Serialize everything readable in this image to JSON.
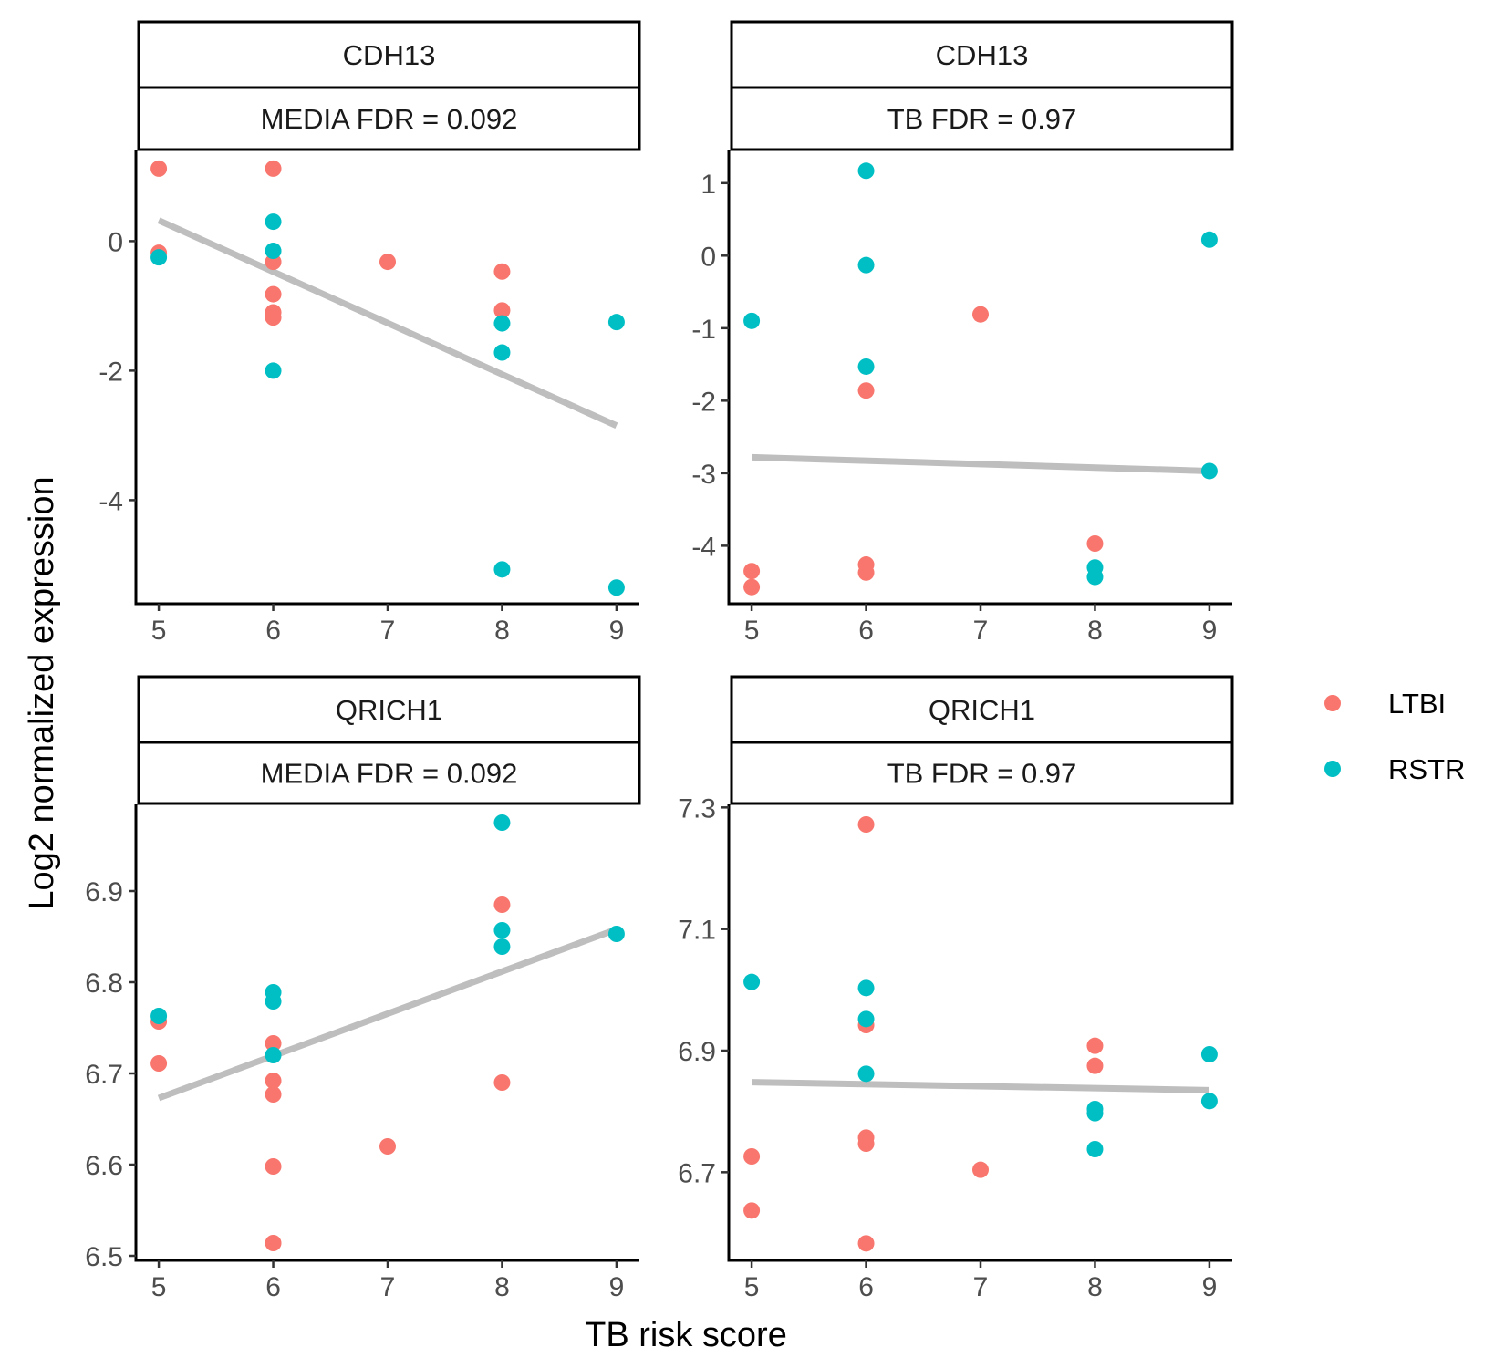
{
  "ylabel": "Log2 normalized expression",
  "xlabel": "TB risk score",
  "legend": {
    "position": "right",
    "entries": [
      {
        "label": "LTBI",
        "color": "#F8766D"
      },
      {
        "label": "RSTR",
        "color": "#00BFC4"
      }
    ]
  },
  "chart_data": [
    {
      "type": "scatter",
      "strip_top": "CDH13",
      "strip_bottom": "MEDIA FDR = 0.092",
      "xlim": [
        4.8,
        9.2
      ],
      "ylim": [
        -5.6,
        1.4
      ],
      "xticks": [
        5,
        6,
        7,
        8,
        9
      ],
      "yticks": [
        0,
        -2,
        -4
      ],
      "ytick_labels": [
        "0",
        "-2",
        "-4"
      ],
      "fit_line": [
        [
          5,
          0.32
        ],
        [
          9,
          -2.85
        ]
      ],
      "series": [
        {
          "name": "LTBI",
          "color": "#F8766D",
          "points": [
            [
              5,
              1.12
            ],
            [
              5,
              -0.18
            ],
            [
              6,
              1.12
            ],
            [
              6,
              -0.32
            ],
            [
              6,
              -0.82
            ],
            [
              6,
              -1.1
            ],
            [
              6,
              -1.18
            ],
            [
              7,
              -0.32
            ],
            [
              8,
              -0.47
            ],
            [
              8,
              -1.07
            ]
          ]
        },
        {
          "name": "RSTR",
          "color": "#00BFC4",
          "points": [
            [
              5,
              -0.25
            ],
            [
              6,
              0.3
            ],
            [
              6,
              -0.15
            ],
            [
              6,
              -2.0
            ],
            [
              8,
              -1.27
            ],
            [
              8,
              -1.72
            ],
            [
              8,
              -5.07
            ],
            [
              9,
              -1.25
            ],
            [
              9,
              -5.35
            ]
          ]
        }
      ]
    },
    {
      "type": "scatter",
      "strip_top": "CDH13",
      "strip_bottom": "TB FDR = 0.97",
      "xlim": [
        4.8,
        9.2
      ],
      "ylim": [
        -4.8,
        1.45
      ],
      "xticks": [
        5,
        6,
        7,
        8,
        9
      ],
      "yticks": [
        1,
        0,
        -1,
        -2,
        -3,
        -4
      ],
      "ytick_labels": [
        "1",
        "0",
        "-1",
        "-2",
        "-3",
        "-4"
      ],
      "fit_line": [
        [
          5,
          -2.78
        ],
        [
          9,
          -2.97
        ]
      ],
      "series": [
        {
          "name": "LTBI",
          "color": "#F8766D",
          "points": [
            [
              5,
              -4.35
            ],
            [
              5,
              -4.57
            ],
            [
              6,
              -1.86
            ],
            [
              6,
              -4.26
            ],
            [
              6,
              -4.37
            ],
            [
              7,
              -0.81
            ],
            [
              8,
              -3.97
            ]
          ]
        },
        {
          "name": "RSTR",
          "color": "#00BFC4",
          "points": [
            [
              5,
              -0.9
            ],
            [
              6,
              1.17
            ],
            [
              6,
              -0.13
            ],
            [
              6,
              -1.53
            ],
            [
              8,
              -4.3
            ],
            [
              8,
              -4.43
            ],
            [
              9,
              0.22
            ],
            [
              9,
              -2.97
            ]
          ]
        }
      ]
    },
    {
      "type": "scatter",
      "strip_top": "QRICH1",
      "strip_bottom": "MEDIA FDR = 0.092",
      "xlim": [
        4.8,
        9.2
      ],
      "ylim": [
        6.495,
        6.995
      ],
      "xticks": [
        5,
        6,
        7,
        8,
        9
      ],
      "yticks": [
        6.9,
        6.8,
        6.7,
        6.6,
        6.5
      ],
      "ytick_labels": [
        "6.9",
        "6.8",
        "6.7",
        "6.6",
        "6.5"
      ],
      "fit_line": [
        [
          5,
          6.673
        ],
        [
          9,
          6.858
        ]
      ],
      "series": [
        {
          "name": "LTBI",
          "color": "#F8766D",
          "points": [
            [
              5,
              6.757
            ],
            [
              5,
              6.711
            ],
            [
              6,
              6.733
            ],
            [
              6,
              6.692
            ],
            [
              6,
              6.677
            ],
            [
              6,
              6.598
            ],
            [
              6,
              6.514
            ],
            [
              7,
              6.62
            ],
            [
              8,
              6.885
            ],
            [
              8,
              6.69
            ]
          ]
        },
        {
          "name": "RSTR",
          "color": "#00BFC4",
          "points": [
            [
              5,
              6.763
            ],
            [
              6,
              6.789
            ],
            [
              6,
              6.779
            ],
            [
              6,
              6.72
            ],
            [
              8,
              6.975
            ],
            [
              8,
              6.857
            ],
            [
              8,
              6.839
            ],
            [
              9,
              6.853
            ]
          ]
        }
      ]
    },
    {
      "type": "scatter",
      "strip_top": "QRICH1",
      "strip_bottom": "TB FDR = 0.97",
      "xlim": [
        4.8,
        9.2
      ],
      "ylim": [
        6.555,
        7.305
      ],
      "xticks": [
        5,
        6,
        7,
        8,
        9
      ],
      "yticks": [
        7.3,
        7.1,
        6.9,
        6.7
      ],
      "ytick_labels": [
        "7.3",
        "7.1",
        "6.9",
        "6.7"
      ],
      "fit_line": [
        [
          5,
          6.848
        ],
        [
          9,
          6.835
        ]
      ],
      "series": [
        {
          "name": "LTBI",
          "color": "#F8766D",
          "points": [
            [
              5,
              6.726
            ],
            [
              5,
              6.637
            ],
            [
              6,
              7.272
            ],
            [
              6,
              6.942
            ],
            [
              6,
              6.757
            ],
            [
              6,
              6.747
            ],
            [
              6,
              6.583
            ],
            [
              7,
              6.704
            ],
            [
              8,
              6.908
            ],
            [
              8,
              6.875
            ]
          ]
        },
        {
          "name": "RSTR",
          "color": "#00BFC4",
          "points": [
            [
              5,
              7.013
            ],
            [
              6,
              7.003
            ],
            [
              6,
              6.952
            ],
            [
              6,
              6.862
            ],
            [
              8,
              6.804
            ],
            [
              8,
              6.797
            ],
            [
              8,
              6.738
            ],
            [
              9,
              6.894
            ],
            [
              9,
              6.817
            ]
          ]
        }
      ]
    }
  ]
}
